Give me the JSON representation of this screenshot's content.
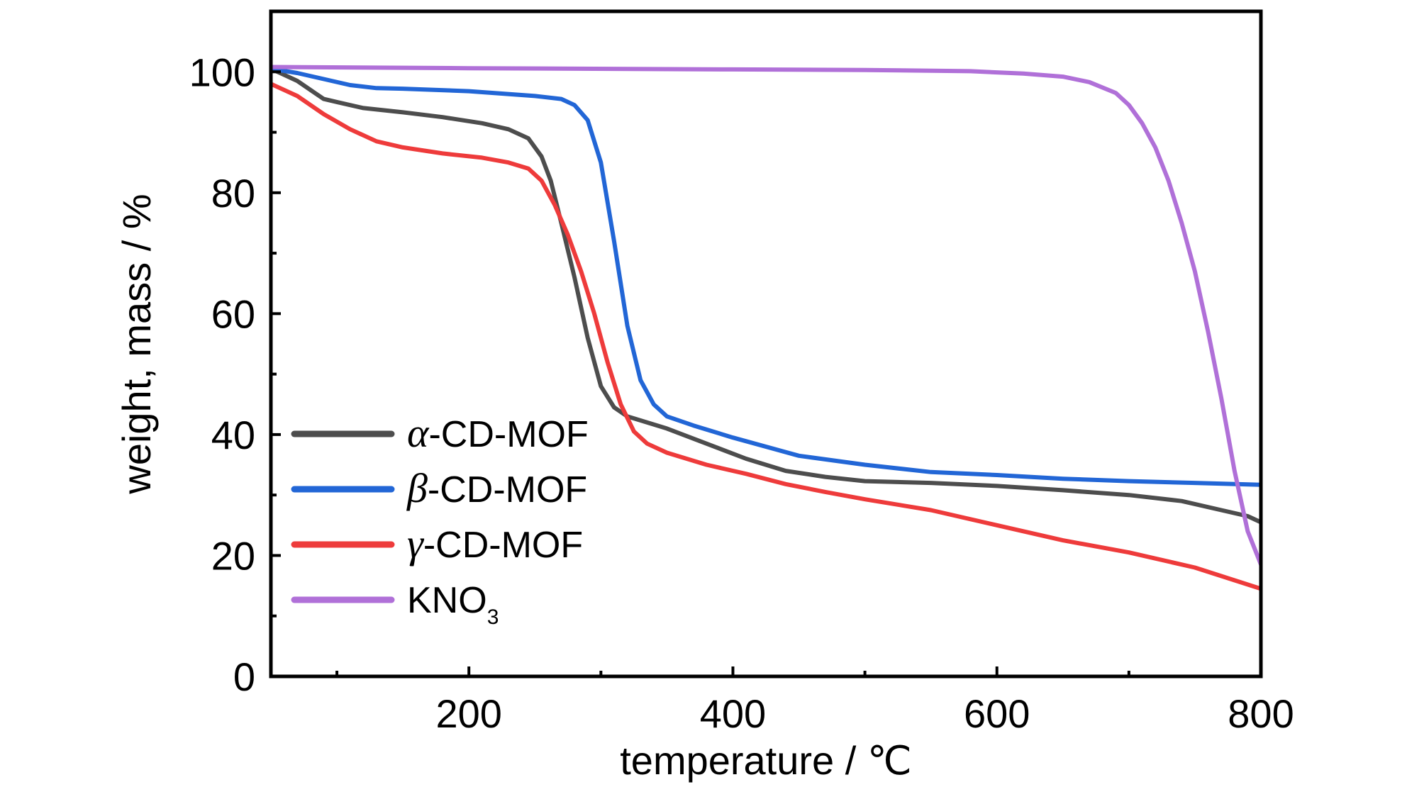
{
  "chart_data": {
    "type": "line",
    "xlabel": "temperature / ℃",
    "ylabel": "weight, mass / %",
    "xlim": [
      50,
      800
    ],
    "ylim": [
      0,
      110
    ],
    "x_ticks": [
      200,
      400,
      600,
      800
    ],
    "x_minor_ticks": [
      100,
      300,
      500,
      700
    ],
    "y_ticks": [
      0,
      20,
      40,
      60,
      80,
      100
    ],
    "y_minor_ticks": [
      10,
      30,
      50,
      70,
      90
    ],
    "grid": false,
    "legend_position": "bottom-left",
    "series": [
      {
        "name": "α-CD-MOF",
        "greek": "α",
        "suffix": "-CD-MOF",
        "color": "#4d4d4d",
        "points": [
          [
            50,
            100.5
          ],
          [
            60,
            99.5
          ],
          [
            70,
            98.5
          ],
          [
            80,
            97
          ],
          [
            90,
            95.5
          ],
          [
            100,
            95
          ],
          [
            120,
            94
          ],
          [
            150,
            93.3
          ],
          [
            180,
            92.5
          ],
          [
            210,
            91.5
          ],
          [
            230,
            90.5
          ],
          [
            245,
            89
          ],
          [
            255,
            86
          ],
          [
            262,
            82
          ],
          [
            270,
            75
          ],
          [
            280,
            66
          ],
          [
            290,
            56
          ],
          [
            300,
            48
          ],
          [
            310,
            44.5
          ],
          [
            320,
            43
          ],
          [
            350,
            41
          ],
          [
            380,
            38.5
          ],
          [
            410,
            36
          ],
          [
            440,
            34
          ],
          [
            470,
            33
          ],
          [
            500,
            32.3
          ],
          [
            550,
            32
          ],
          [
            600,
            31.5
          ],
          [
            650,
            30.8
          ],
          [
            700,
            30
          ],
          [
            740,
            29
          ],
          [
            770,
            27.5
          ],
          [
            790,
            26.5
          ],
          [
            800,
            25.5
          ]
        ]
      },
      {
        "name": "β-CD-MOF",
        "greek": "β",
        "suffix": "-CD-MOF",
        "color": "#2266d6",
        "points": [
          [
            50,
            100.5
          ],
          [
            70,
            99.8
          ],
          [
            90,
            98.8
          ],
          [
            110,
            97.8
          ],
          [
            130,
            97.3
          ],
          [
            150,
            97.2
          ],
          [
            200,
            96.8
          ],
          [
            250,
            96
          ],
          [
            270,
            95.5
          ],
          [
            280,
            94.5
          ],
          [
            290,
            92
          ],
          [
            300,
            85
          ],
          [
            310,
            72
          ],
          [
            320,
            58
          ],
          [
            330,
            49
          ],
          [
            340,
            45
          ],
          [
            350,
            43
          ],
          [
            370,
            41.5
          ],
          [
            400,
            39.5
          ],
          [
            450,
            36.5
          ],
          [
            500,
            35
          ],
          [
            550,
            33.8
          ],
          [
            600,
            33.3
          ],
          [
            650,
            32.7
          ],
          [
            700,
            32.3
          ],
          [
            750,
            32
          ],
          [
            800,
            31.7
          ]
        ]
      },
      {
        "name": "γ-CD-MOF",
        "greek": "γ",
        "suffix": "-CD-MOF",
        "color": "#ee3b3b",
        "points": [
          [
            50,
            98
          ],
          [
            70,
            96
          ],
          [
            90,
            93
          ],
          [
            110,
            90.5
          ],
          [
            130,
            88.5
          ],
          [
            150,
            87.5
          ],
          [
            180,
            86.5
          ],
          [
            210,
            85.8
          ],
          [
            230,
            85
          ],
          [
            245,
            84
          ],
          [
            255,
            82
          ],
          [
            265,
            78
          ],
          [
            275,
            73
          ],
          [
            285,
            67
          ],
          [
            295,
            60
          ],
          [
            305,
            52
          ],
          [
            315,
            45
          ],
          [
            325,
            40.5
          ],
          [
            335,
            38.5
          ],
          [
            350,
            37
          ],
          [
            380,
            35
          ],
          [
            410,
            33.5
          ],
          [
            440,
            31.8
          ],
          [
            470,
            30.5
          ],
          [
            500,
            29.3
          ],
          [
            550,
            27.5
          ],
          [
            600,
            25
          ],
          [
            650,
            22.5
          ],
          [
            700,
            20.5
          ],
          [
            750,
            18
          ],
          [
            800,
            14.5
          ]
        ]
      },
      {
        "name": "KNO3",
        "base": "KNO",
        "sub": "3",
        "color": "#b070d8",
        "points": [
          [
            50,
            100.8
          ],
          [
            200,
            100.6
          ],
          [
            400,
            100.4
          ],
          [
            500,
            100.3
          ],
          [
            580,
            100.1
          ],
          [
            620,
            99.7
          ],
          [
            650,
            99.2
          ],
          [
            670,
            98.3
          ],
          [
            690,
            96.5
          ],
          [
            700,
            94.5
          ],
          [
            710,
            91.5
          ],
          [
            720,
            87.5
          ],
          [
            730,
            82
          ],
          [
            740,
            75
          ],
          [
            750,
            67
          ],
          [
            760,
            57
          ],
          [
            770,
            46
          ],
          [
            780,
            34
          ],
          [
            790,
            24
          ],
          [
            800,
            18.5
          ]
        ]
      }
    ]
  }
}
